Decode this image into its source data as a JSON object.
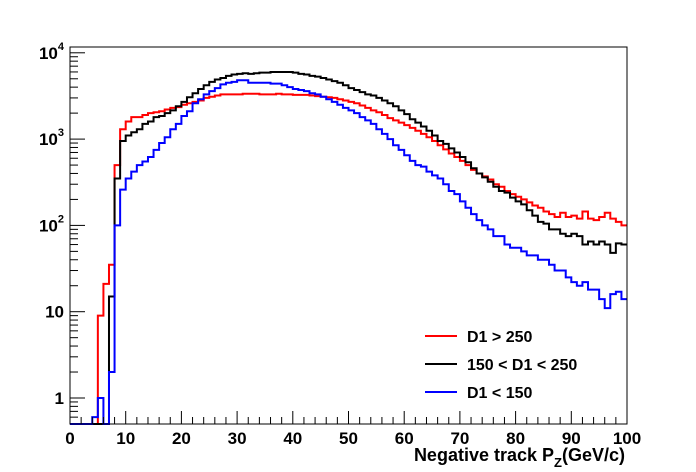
{
  "chart_data": {
    "type": "line",
    "style": "step-histogram",
    "title": "",
    "xlabel": "Negative track P",
    "xlabel_subscript": "Z",
    "xlabel_suffix": "(GeV/c)",
    "ylabel": "",
    "xlim": [
      0,
      100
    ],
    "ylim": [
      0.5,
      12000
    ],
    "yscale": "log",
    "bin_width": 1,
    "x_ticks": [
      "0",
      "10",
      "20",
      "30",
      "40",
      "50",
      "60",
      "70",
      "80",
      "90",
      "100"
    ],
    "y_ticks": [
      {
        "value": 1,
        "base": "1",
        "exp": ""
      },
      {
        "value": 10,
        "base": "10",
        "exp": ""
      },
      {
        "value": 100,
        "base": "10",
        "exp": "2"
      },
      {
        "value": 1000,
        "base": "10",
        "exp": "3"
      },
      {
        "value": 10000,
        "base": "10",
        "exp": "4"
      }
    ],
    "legend_position": "bottom-right",
    "series": [
      {
        "name": "D1 > 250",
        "color": "#ff0000",
        "values": [
          0.4,
          0.4,
          0.4,
          0.4,
          0.4,
          9,
          21,
          35,
          500,
          1300,
          1600,
          1800,
          1800,
          1900,
          2000,
          2050,
          2100,
          2200,
          2300,
          2350,
          2500,
          2600,
          2700,
          2800,
          3000,
          3100,
          3200,
          3300,
          3300,
          3300,
          3300,
          3350,
          3350,
          3350,
          3300,
          3300,
          3300,
          3350,
          3300,
          3300,
          3250,
          3250,
          3250,
          3200,
          3150,
          3100,
          3050,
          3000,
          2900,
          2800,
          2700,
          2600,
          2450,
          2300,
          2150,
          2050,
          1900,
          1750,
          1650,
          1550,
          1450,
          1350,
          1250,
          1150,
          1050,
          950,
          850,
          760,
          680,
          620,
          560,
          500,
          440,
          400,
          370,
          340,
          300,
          280,
          250,
          230,
          215,
          200,
          185,
          170,
          160,
          145,
          135,
          125,
          140,
          125,
          130,
          120,
          145,
          120,
          115,
          125,
          140,
          120,
          110,
          100
        ]
      },
      {
        "name": "150 < D1 < 250",
        "color": "#000000",
        "values": [
          0.4,
          0.4,
          0.4,
          0.4,
          0.4,
          0.4,
          0.4,
          15,
          350,
          950,
          1100,
          1200,
          1300,
          1500,
          1600,
          1800,
          1850,
          2000,
          2150,
          2400,
          2700,
          3050,
          3400,
          3800,
          4200,
          4600,
          4900,
          5100,
          5400,
          5600,
          5700,
          5800,
          5700,
          5800,
          5900,
          5900,
          6000,
          6000,
          6000,
          6000,
          5900,
          5700,
          5600,
          5400,
          5300,
          5100,
          4900,
          4700,
          4500,
          4200,
          3900,
          3700,
          3500,
          3300,
          3200,
          3000,
          2800,
          2600,
          2400,
          2150,
          1950,
          1700,
          1550,
          1400,
          1250,
          1100,
          950,
          880,
          780,
          700,
          620,
          540,
          460,
          400,
          360,
          320,
          280,
          250,
          240,
          210,
          190,
          175,
          150,
          130,
          110,
          105,
          90,
          90,
          80,
          75,
          80,
          75,
          60,
          65,
          60,
          65,
          60,
          48,
          62,
          60
        ]
      },
      {
        "name": "D1 < 150",
        "color": "#0000ff",
        "values": [
          0.4,
          0.4,
          0.4,
          0.4,
          0.6,
          1,
          0.4,
          2,
          100,
          260,
          350,
          420,
          500,
          550,
          620,
          750,
          900,
          1050,
          1300,
          1500,
          1850,
          2100,
          2600,
          2900,
          3300,
          3600,
          3900,
          4300,
          4500,
          4600,
          4800,
          4800,
          4500,
          4500,
          4500,
          4500,
          4400,
          4400,
          4200,
          4000,
          3800,
          3700,
          3600,
          3400,
          3300,
          3100,
          2900,
          2700,
          2500,
          2300,
          2150,
          2000,
          1800,
          1650,
          1500,
          1300,
          1150,
          1000,
          850,
          750,
          650,
          560,
          500,
          480,
          420,
          380,
          350,
          300,
          250,
          230,
          190,
          160,
          135,
          115,
          100,
          90,
          75,
          75,
          60,
          55,
          55,
          50,
          45,
          45,
          40,
          40,
          35,
          30,
          30,
          25,
          22,
          20,
          22,
          18,
          18,
          14,
          11,
          16,
          17,
          14
        ]
      }
    ]
  }
}
